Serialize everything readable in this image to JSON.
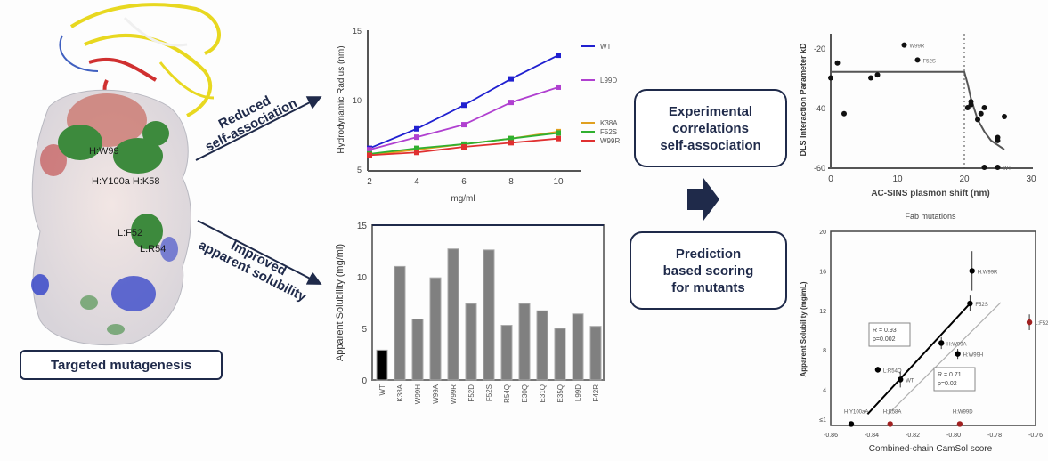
{
  "labels": {
    "targeted_mutagenesis": "Targeted mutagenesis",
    "arrow_top": [
      "Reduced",
      "self-association"
    ],
    "arrow_bottom": [
      "Improved",
      "apparent solubility"
    ],
    "box_experimental": [
      "Experimental",
      "correlations",
      "self-association"
    ],
    "box_prediction": [
      "Prediction",
      "based scoring",
      "for mutants"
    ],
    "residues": [
      "H:W99",
      "H:Y100a H:K58",
      "L:F52",
      "L:R54"
    ]
  },
  "colors": {
    "navy": "#1f2a4a",
    "acidic": "#c0392b",
    "basic": "#2233cc",
    "mutation_site": "#2e7d32"
  },
  "chart_data": [
    {
      "type": "line",
      "xlabel": "mg/ml",
      "ylabel": "Hydrodynamic Radius (nm)",
      "x": [
        2,
        4,
        6,
        8,
        10
      ],
      "xticks": [
        2,
        4,
        6,
        8,
        10
      ],
      "yticks": [
        5,
        10,
        15
      ],
      "ylim": [
        5,
        15
      ],
      "legend": "right",
      "series": [
        {
          "name": "WT",
          "color": "#2020d0",
          "values": [
            6.5,
            7.9,
            9.6,
            11.5,
            13.2
          ]
        },
        {
          "name": "L99D",
          "color": "#b040d0",
          "values": [
            6.4,
            7.3,
            8.2,
            9.8,
            10.9
          ]
        },
        {
          "name": "K38A",
          "color": "#e0a020",
          "values": [
            6.0,
            6.4,
            6.8,
            7.2,
            7.7
          ]
        },
        {
          "name": "F52S",
          "color": "#30b030",
          "values": [
            6.1,
            6.5,
            6.8,
            7.2,
            7.6
          ]
        },
        {
          "name": "W99R",
          "color": "#e03030",
          "values": [
            6.0,
            6.2,
            6.6,
            6.9,
            7.2
          ]
        }
      ]
    },
    {
      "type": "bar",
      "ylabel": "Apparent Solubility (mg/ml)",
      "categories": [
        "WT",
        "K38A",
        "W99H",
        "W99A",
        "W99R",
        "F52D",
        "F52S",
        "R54Q",
        "E30Q",
        "E31Q",
        "E35Q",
        "L99D",
        "F42R"
      ],
      "values": [
        2.9,
        11.0,
        5.9,
        9.9,
        12.7,
        7.4,
        12.6,
        5.3,
        7.4,
        6.7,
        5.0,
        6.4,
        5.2
      ],
      "colors": [
        "#000000",
        "#808080"
      ],
      "yticks": [
        0,
        5,
        10,
        15
      ],
      "ylim": [
        0,
        15
      ]
    },
    {
      "type": "scatter",
      "title": "Fab mutations",
      "xlabel": "AC-SINS plasmon shift (nm)",
      "ylabel": "DLS Interaction Parameter kD",
      "xticks": [
        0,
        10,
        20,
        30
      ],
      "yticks": [
        -20,
        -40,
        -60
      ],
      "xlim": [
        0,
        30
      ],
      "ylim": [
        -60,
        -15
      ],
      "threshold_x": 20,
      "points": [
        {
          "x": 0,
          "y": -30
        },
        {
          "x": 1,
          "y": -25
        },
        {
          "x": 2,
          "y": -42
        },
        {
          "x": 6,
          "y": -30
        },
        {
          "x": 7,
          "y": -29
        },
        {
          "x": 11,
          "y": -19,
          "label": "W99R"
        },
        {
          "x": 13,
          "y": -24,
          "label": "F52S"
        },
        {
          "x": 20.5,
          "y": -40
        },
        {
          "x": 21,
          "y": -39
        },
        {
          "x": 21,
          "y": -38
        },
        {
          "x": 22,
          "y": -44
        },
        {
          "x": 22.5,
          "y": -42
        },
        {
          "x": 23,
          "y": -40
        },
        {
          "x": 23,
          "y": -60
        },
        {
          "x": 25,
          "y": -50
        },
        {
          "x": 25,
          "y": -51
        },
        {
          "x": 25,
          "y": -60,
          "label": "WT"
        },
        {
          "x": 26,
          "y": -43
        }
      ],
      "fit": [
        [
          0,
          -28
        ],
        [
          20,
          -28
        ],
        [
          20.5,
          -32
        ],
        [
          21,
          -37
        ],
        [
          22,
          -44
        ],
        [
          23,
          -48
        ],
        [
          24,
          -51
        ],
        [
          26,
          -54
        ]
      ]
    },
    {
      "type": "scatter",
      "xlabel": "Combined-chain CamSol score",
      "ylabel": "Apparent Solubility (mg/mL)",
      "xticks": [
        -0.86,
        -0.84,
        -0.82,
        -0.8,
        -0.78,
        -0.76
      ],
      "yticks": [
        4,
        8,
        12,
        16,
        20
      ],
      "ytick_extra": "≤1",
      "xlim": [
        -0.86,
        -0.76
      ],
      "ylim": [
        0,
        20
      ],
      "points": [
        {
          "x": -0.791,
          "y": 16.0,
          "err": 2.0,
          "label": "H:W99R",
          "color": "#000000"
        },
        {
          "x": -0.792,
          "y": 12.7,
          "err": 0.8,
          "label": "F52S",
          "color": "#000000"
        },
        {
          "x": -0.763,
          "y": 10.8,
          "err": 0.8,
          "label": "L:F52D",
          "color": "#a02020"
        },
        {
          "x": -0.806,
          "y": 8.7,
          "err": 0.6,
          "label": "H:W99A",
          "color": "#000000"
        },
        {
          "x": -0.798,
          "y": 7.6,
          "err": 0.5,
          "label": "H:W99H",
          "color": "#000000"
        },
        {
          "x": -0.837,
          "y": 6.0,
          "err": 0.3,
          "label": "L:R54Q",
          "color": "#000000"
        },
        {
          "x": -0.826,
          "y": 5.0,
          "err": 0.8,
          "label": "WT",
          "color": "#000000"
        },
        {
          "x": -0.85,
          "y": 0.5,
          "label": "H:Y100aA",
          "color": "#000000"
        },
        {
          "x": -0.831,
          "y": 0.5,
          "label": "H:K58A",
          "color": "#a02020"
        },
        {
          "x": -0.797,
          "y": 0.5,
          "label": "H:W99D",
          "color": "#a02020"
        }
      ],
      "fits": [
        {
          "from": [
            -0.842,
            1.5
          ],
          "to": [
            -0.792,
            12.7
          ],
          "color": "#000000",
          "stats": [
            "R = 0.93",
            "p=0.002"
          ]
        },
        {
          "from": [
            -0.832,
            1.5
          ],
          "to": [
            -0.777,
            12.8
          ],
          "color": "#b0b0b0",
          "stats": [
            "R = 0.71",
            "p=0.02"
          ]
        }
      ]
    }
  ]
}
